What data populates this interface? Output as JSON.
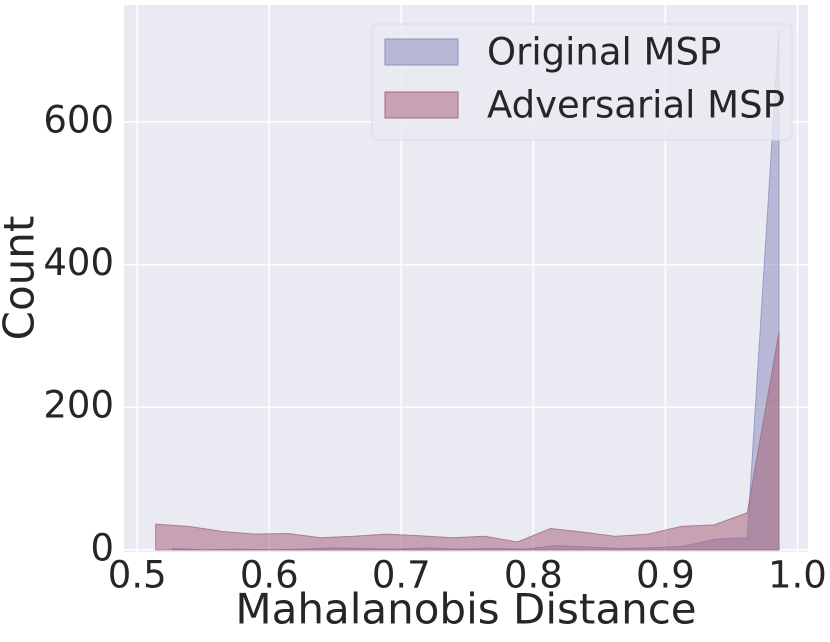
{
  "chart_data": {
    "type": "area",
    "xlabel": "Mahalanobis Distance",
    "ylabel": "Count",
    "series": [
      {
        "name": "Original MSP",
        "color": "#8c8fc0",
        "x": [
          0.527,
          0.551,
          0.575,
          0.6,
          0.624,
          0.648,
          0.672,
          0.696,
          0.72,
          0.744,
          0.769,
          0.793,
          0.817,
          0.841,
          0.865,
          0.889,
          0.914,
          0.938,
          0.962,
          0.986
        ],
        "values": [
          2,
          0,
          1,
          0,
          1,
          3,
          2,
          1,
          3,
          1,
          2,
          1,
          6,
          4,
          2,
          3,
          5,
          15,
          17,
          730
        ]
      },
      {
        "name": "Adversarial MSP",
        "color": "#a8667e",
        "x": [
          0.514,
          0.539,
          0.564,
          0.589,
          0.614,
          0.639,
          0.664,
          0.688,
          0.713,
          0.738,
          0.763,
          0.788,
          0.813,
          0.837,
          0.862,
          0.887,
          0.912,
          0.937,
          0.962,
          0.986
        ],
        "values": [
          36,
          33,
          26,
          22,
          23,
          17,
          19,
          22,
          20,
          17,
          19,
          11,
          30,
          25,
          19,
          22,
          33,
          35,
          52,
          305
        ]
      }
    ],
    "xlim": [
      0.49,
      1.008
    ],
    "ylim": [
      -3,
      764
    ],
    "xticks": [
      0.5,
      0.6,
      0.7,
      0.8,
      0.9,
      {
        "value": 1,
        "label": "1.0"
      }
    ],
    "yticks": [
      0,
      200,
      400,
      600
    ],
    "grid": true,
    "legend": "upper right"
  }
}
